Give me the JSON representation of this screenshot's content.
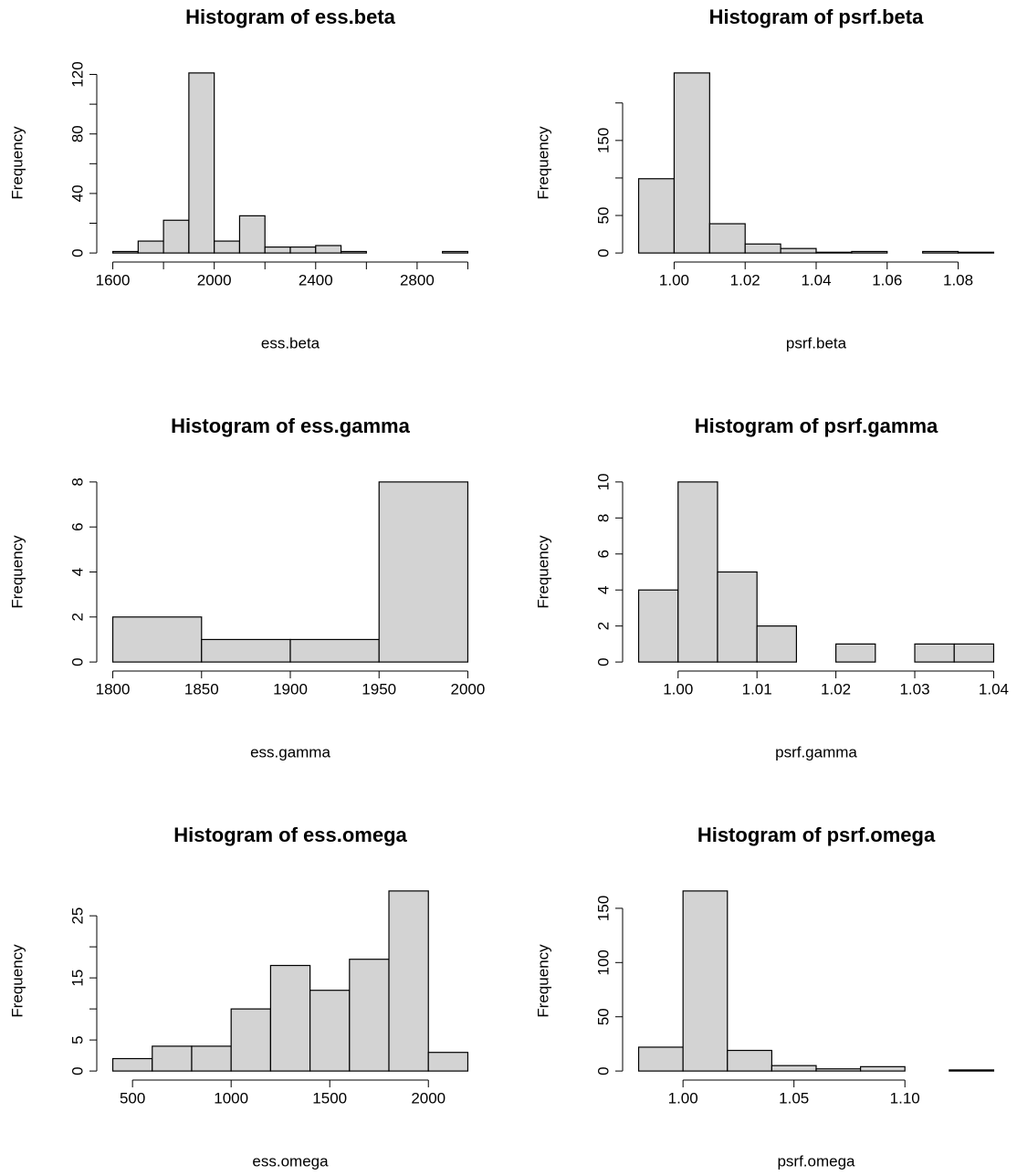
{
  "chart_data": [
    {
      "type": "histogram",
      "title": "Histogram of ess.beta",
      "xlabel": "ess.beta",
      "ylabel": "Frequency",
      "color": "#d3d3d3",
      "bins": [
        1600,
        1700,
        1800,
        1900,
        2000,
        2100,
        2200,
        2300,
        2400,
        2500,
        2600,
        2700,
        2800,
        2900,
        3000
      ],
      "values": [
        1,
        8,
        22,
        121,
        8,
        25,
        4,
        4,
        5,
        1,
        0,
        0,
        0,
        1
      ],
      "xlim": [
        1600,
        3000
      ],
      "ylim": [
        0,
        121
      ],
      "xticks": [
        1600,
        2000,
        2400,
        2800
      ],
      "xminorticks": [
        1800,
        2200,
        2600,
        3000
      ],
      "yticks": [
        0,
        40,
        80,
        120
      ],
      "yminorticks": [
        20,
        60,
        100
      ]
    },
    {
      "type": "histogram",
      "title": "Histogram of psrf.beta",
      "xlabel": "psrf.beta",
      "ylabel": "Frequency",
      "color": "#d3d3d3",
      "bins": [
        0.99,
        1,
        1.01,
        1.02,
        1.03,
        1.04,
        1.05,
        1.06,
        1.07,
        1.08,
        1.09
      ],
      "values": [
        99,
        240,
        39,
        12,
        6,
        1,
        2,
        0,
        2,
        1
      ],
      "xlim": [
        0.99,
        1.09
      ],
      "ylim": [
        0,
        240
      ],
      "xticks": [
        {
          "value": 1,
          "label": "1.00"
        },
        1.02,
        1.04,
        1.06,
        1.08
      ],
      "yticks": [
        0,
        50,
        150
      ],
      "yminorticks": [
        100,
        200
      ]
    },
    {
      "type": "histogram",
      "title": "Histogram of ess.gamma",
      "xlabel": "ess.gamma",
      "ylabel": "Frequency",
      "color": "#d3d3d3",
      "bins": [
        1800,
        1850,
        1900,
        1950,
        2000
      ],
      "values": [
        2,
        1,
        1,
        8
      ],
      "xlim": [
        1800,
        2000
      ],
      "ylim": [
        0,
        8
      ],
      "xticks": [
        1800,
        1850,
        1900,
        1950,
        2000
      ],
      "yticks": [
        0,
        2,
        4,
        6,
        8
      ]
    },
    {
      "type": "histogram",
      "title": "Histogram of psrf.gamma",
      "xlabel": "psrf.gamma",
      "ylabel": "Frequency",
      "color": "#d3d3d3",
      "bins": [
        0.995,
        1,
        1.005,
        1.01,
        1.015,
        1.02,
        1.025,
        1.03,
        1.035,
        1.04
      ],
      "values": [
        4,
        10,
        5,
        2,
        0,
        1,
        0,
        1,
        1
      ],
      "xlim": [
        0.995,
        1.04
      ],
      "ylim": [
        0,
        10
      ],
      "xticks": [
        {
          "value": 1,
          "label": "1.00"
        },
        1.01,
        1.02,
        1.03,
        1.04
      ],
      "yticks": [
        0,
        2,
        4,
        6,
        8,
        10
      ]
    },
    {
      "type": "histogram",
      "title": "Histogram of ess.omega",
      "xlabel": "ess.omega",
      "ylabel": "Frequency",
      "color": "#d3d3d3",
      "bins": [
        400,
        600,
        800,
        1000,
        1200,
        1400,
        1600,
        1800,
        2000,
        2200
      ],
      "values": [
        2,
        4,
        4,
        10,
        17,
        13,
        18,
        29,
        3
      ],
      "xlim": [
        400,
        2200
      ],
      "ylim": [
        0,
        29
      ],
      "xticks": [
        500,
        1000,
        1500,
        2000
      ],
      "yticks": [
        0,
        5,
        15,
        25
      ],
      "yminorticks": [
        10,
        20
      ]
    },
    {
      "type": "histogram",
      "title": "Histogram of psrf.omega",
      "xlabel": "psrf.omega",
      "ylabel": "Frequency",
      "color": "#d3d3d3",
      "bins": [
        0.98,
        1,
        1.02,
        1.04,
        1.06,
        1.08,
        1.1,
        1.12,
        1.14
      ],
      "values": [
        22,
        166,
        19,
        5,
        2,
        4,
        0,
        1
      ],
      "xlim": [
        0.98,
        1.14
      ],
      "ylim": [
        0,
        166
      ],
      "xticks": [
        {
          "value": 1,
          "label": "1.00"
        },
        1.05,
        {
          "value": 1.1,
          "label": "1.10"
        }
      ],
      "yticks": [
        0,
        50,
        100,
        150
      ]
    }
  ]
}
